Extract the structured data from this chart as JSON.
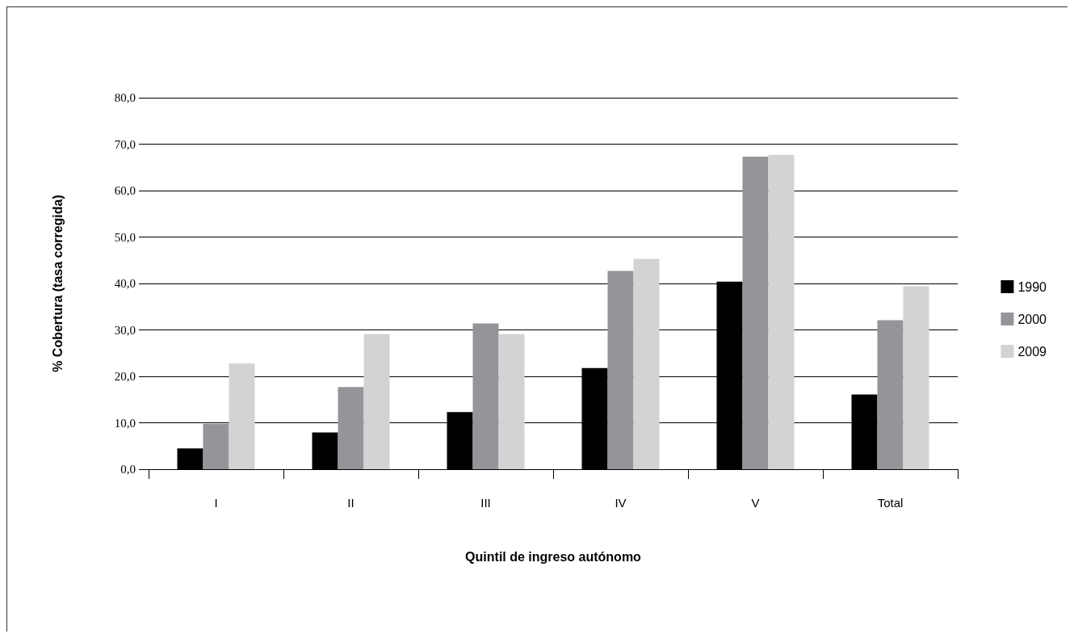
{
  "chart_data": {
    "type": "bar",
    "xlabel": "Quintil de ingreso autónomo",
    "ylabel": "% Cobertura (tasa corregida)",
    "categories": [
      "I",
      "II",
      "III",
      "IV",
      "V",
      "Total"
    ],
    "series": [
      {
        "name": "1990",
        "color": "#000000",
        "values": [
          4.5,
          7.9,
          12.3,
          21.8,
          40.4,
          16.1
        ]
      },
      {
        "name": "2000",
        "color": "#939598",
        "values": [
          9.8,
          17.7,
          31.4,
          42.7,
          67.3,
          32.1
        ]
      },
      {
        "name": "2009",
        "color": "#d1d3d4",
        "values": [
          22.8,
          29.1,
          29.1,
          45.3,
          67.7,
          39.4
        ]
      }
    ],
    "ylim": [
      0,
      80
    ],
    "yticks": [
      {
        "value": 0,
        "label": "0,0"
      },
      {
        "value": 10,
        "label": "10,0"
      },
      {
        "value": 20,
        "label": "20,0"
      },
      {
        "value": 30,
        "label": "30,0"
      },
      {
        "value": 40,
        "label": "40,0"
      },
      {
        "value": 50,
        "label": "50,0"
      },
      {
        "value": 60,
        "label": "60,0"
      },
      {
        "value": 70,
        "label": "70,0"
      },
      {
        "value": 80,
        "label": "80,0"
      }
    ],
    "grid": "y",
    "legend": "right"
  }
}
